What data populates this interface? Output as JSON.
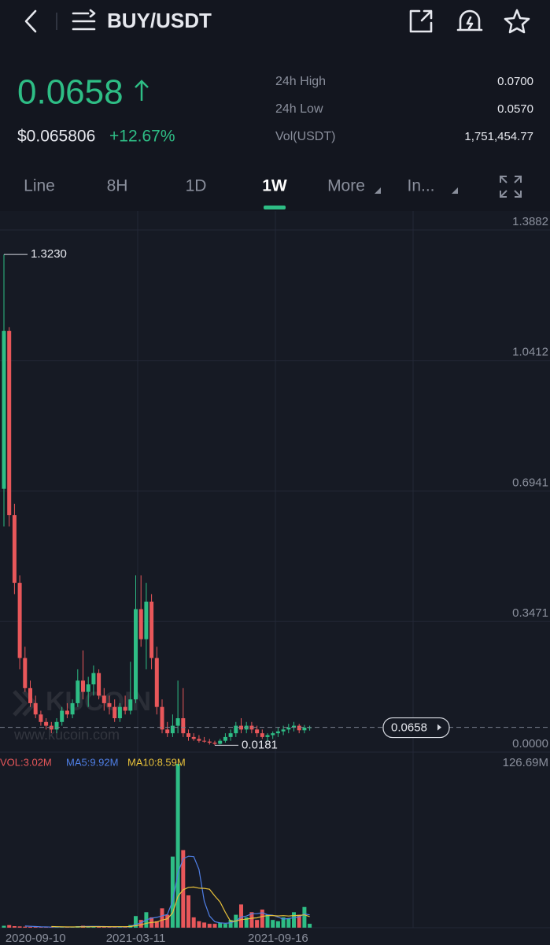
{
  "header": {
    "title": "BUY/USDT"
  },
  "ticker": {
    "price": "0.0658",
    "usd_price": "$0.065806",
    "change": "+12.67%",
    "stats": [
      {
        "label": "24h High",
        "value": "0.0700"
      },
      {
        "label": "24h Low",
        "value": "0.0570"
      },
      {
        "label": "Vol(USDT)",
        "value": "1,751,454.77"
      }
    ]
  },
  "tabs": [
    "Line",
    "8H",
    "1D",
    "1W",
    "More",
    "In..."
  ],
  "watermark": {
    "logo": "KUCOIN",
    "url": "www.kucoin.com"
  },
  "chart_data": [
    {
      "type": "candlestick",
      "up_color": "#2ebd85",
      "down_color": "#e8575a",
      "grid": true,
      "ylim": [
        0,
        1.3882
      ],
      "yticks": [
        1.3882,
        1.0412,
        0.6941,
        0.3471,
        {
          "value": 0,
          "label": "0.0000"
        }
      ],
      "annotations": [
        {
          "value": 1.323,
          "label": "1.3230"
        },
        {
          "value": 0.0181,
          "label": "0.0181"
        }
      ],
      "last_price": {
        "value": 0.0658,
        "label": "0.0658"
      },
      "ohlc": [
        [
          0.7,
          1.323,
          0.6,
          1.12
        ],
        [
          1.12,
          1.13,
          0.6,
          0.63
        ],
        [
          0.63,
          0.66,
          0.42,
          0.45
        ],
        [
          0.45,
          0.47,
          0.22,
          0.25
        ],
        [
          0.25,
          0.28,
          0.16,
          0.17
        ],
        [
          0.17,
          0.19,
          0.12,
          0.13
        ],
        [
          0.13,
          0.15,
          0.09,
          0.1
        ],
        [
          0.1,
          0.11,
          0.07,
          0.08
        ],
        [
          0.08,
          0.09,
          0.06,
          0.07
        ],
        [
          0.07,
          0.08,
          0.05,
          0.06
        ],
        [
          0.06,
          0.09,
          0.05,
          0.08
        ],
        [
          0.08,
          0.12,
          0.07,
          0.11
        ],
        [
          0.11,
          0.13,
          0.09,
          0.1
        ],
        [
          0.1,
          0.14,
          0.09,
          0.13
        ],
        [
          0.13,
          0.22,
          0.12,
          0.19
        ],
        [
          0.19,
          0.27,
          0.14,
          0.16
        ],
        [
          0.16,
          0.2,
          0.12,
          0.18
        ],
        [
          0.18,
          0.23,
          0.15,
          0.21
        ],
        [
          0.21,
          0.22,
          0.14,
          0.15
        ],
        [
          0.15,
          0.17,
          0.11,
          0.13
        ],
        [
          0.13,
          0.15,
          0.1,
          0.12
        ],
        [
          0.12,
          0.14,
          0.08,
          0.09
        ],
        [
          0.09,
          0.13,
          0.08,
          0.12
        ],
        [
          0.12,
          0.15,
          0.1,
          0.11
        ],
        [
          0.11,
          0.24,
          0.1,
          0.14
        ],
        [
          0.14,
          0.47,
          0.13,
          0.38
        ],
        [
          0.38,
          0.47,
          0.28,
          0.3
        ],
        [
          0.3,
          0.45,
          0.22,
          0.4
        ],
        [
          0.4,
          0.42,
          0.22,
          0.25
        ],
        [
          0.25,
          0.28,
          0.1,
          0.12
        ],
        [
          0.12,
          0.14,
          0.05,
          0.06
        ],
        [
          0.06,
          0.08,
          0.04,
          0.05
        ],
        [
          0.05,
          0.1,
          0.04,
          0.07
        ],
        [
          0.07,
          0.19,
          0.05,
          0.09
        ],
        [
          0.09,
          0.17,
          0.04,
          0.05
        ],
        [
          0.05,
          0.06,
          0.03,
          0.04
        ],
        [
          0.04,
          0.05,
          0.03,
          0.035
        ],
        [
          0.035,
          0.045,
          0.025,
          0.03
        ],
        [
          0.03,
          0.04,
          0.025,
          0.028
        ],
        [
          0.028,
          0.035,
          0.02,
          0.025
        ],
        [
          0.025,
          0.03,
          0.0181,
          0.022
        ],
        [
          0.022,
          0.035,
          0.02,
          0.03
        ],
        [
          0.03,
          0.05,
          0.025,
          0.04
        ],
        [
          0.04,
          0.06,
          0.03,
          0.05
        ],
        [
          0.05,
          0.08,
          0.04,
          0.07
        ],
        [
          0.07,
          0.09,
          0.05,
          0.06
        ],
        [
          0.06,
          0.08,
          0.05,
          0.07
        ],
        [
          0.07,
          0.08,
          0.05,
          0.06
        ],
        [
          0.06,
          0.07,
          0.04,
          0.05
        ],
        [
          0.05,
          0.06,
          0.035,
          0.04
        ],
        [
          0.04,
          0.05,
          0.03,
          0.045
        ],
        [
          0.045,
          0.055,
          0.035,
          0.05
        ],
        [
          0.05,
          0.065,
          0.04,
          0.055
        ],
        [
          0.055,
          0.07,
          0.045,
          0.06
        ],
        [
          0.06,
          0.075,
          0.05,
          0.065
        ],
        [
          0.065,
          0.08,
          0.055,
          0.07
        ],
        [
          0.07,
          0.075,
          0.05,
          0.058
        ],
        [
          0.058,
          0.072,
          0.05,
          0.065
        ],
        [
          0.065,
          0.07,
          0.057,
          0.0658
        ]
      ]
    },
    {
      "type": "bar",
      "categories": [
        null,
        null,
        null,
        null,
        null,
        null,
        "2020-09-10",
        null,
        null,
        null,
        null,
        null,
        null,
        null,
        null,
        null,
        null,
        null,
        null,
        null,
        null,
        null,
        null,
        null,
        null,
        "2021-03-11",
        null,
        null,
        null,
        null,
        null,
        null,
        null,
        null,
        null,
        null,
        null,
        null,
        null,
        null,
        null,
        null,
        null,
        null,
        null,
        null,
        null,
        null,
        null,
        null,
        null,
        null,
        "2021-09-16",
        null,
        null,
        null,
        null,
        null,
        null
      ],
      "ylim": [
        0,
        126.69
      ],
      "yticks": [
        {
          "value": 126.69,
          "label": "126.69M"
        }
      ],
      "series": [
        {
          "name": "VOL:3.02M",
          "color": "#e8575a",
          "values": [
            1.5,
            2,
            1.2,
            1,
            0.8,
            0.7,
            0.6,
            0.5,
            0.5,
            0.4,
            0.5,
            0.6,
            0.5,
            0.6,
            1.2,
            1.5,
            1,
            0.8,
            0.7,
            0.6,
            0.5,
            0.5,
            0.6,
            0.8,
            2,
            9,
            6,
            12,
            8,
            5,
            15,
            10,
            55,
            126.69,
            60,
            25,
            8,
            5,
            4,
            3,
            3,
            4,
            3,
            6,
            10,
            18,
            8,
            12,
            6,
            14,
            10,
            6,
            5,
            8,
            7,
            12,
            10,
            16,
            3.02
          ]
        },
        {
          "name": "MA5:9.92M",
          "color": "#4f7fe6",
          "values": [
            null,
            null,
            null,
            null,
            1.3,
            1.1,
            0.9,
            0.7,
            0.6,
            0.5,
            0.5,
            0.5,
            0.5,
            0.5,
            0.7,
            0.9,
            1.0,
            1.0,
            1.0,
            0.9,
            0.7,
            0.6,
            0.6,
            0.6,
            0.9,
            2.6,
            3.7,
            6.0,
            7.4,
            8,
            9.2,
            10.2,
            20.6,
            42.3,
            53.3,
            55.3,
            55,
            45,
            20.4,
            9,
            4.6,
            3.8,
            3.4,
            3.8,
            5.2,
            8.2,
            9,
            10.8,
            10.8,
            11.6,
            10,
            9.6,
            8.2,
            6.6,
            7.2,
            7.6,
            8.4,
            10.6,
            9.92
          ]
        },
        {
          "name": "MA10:8.59M",
          "color": "#e8c13a",
          "values": [
            null,
            null,
            null,
            null,
            null,
            null,
            null,
            null,
            null,
            0.9,
            0.8,
            0.7,
            0.6,
            0.6,
            0.6,
            0.7,
            0.7,
            0.8,
            0.8,
            0.8,
            0.8,
            0.8,
            0.8,
            0.8,
            0.9,
            1.6,
            2.2,
            3.4,
            4.1,
            4.4,
            5.9,
            6.9,
            11.4,
            24.1,
            29.3,
            31.2,
            31.4,
            30.6,
            30.4,
            29.7,
            24.5,
            19.9,
            11.9,
            4.8,
            5.1,
            6.3,
            6.6,
            7.3,
            7.6,
            8.7,
            9.4,
            9.4,
            9.1,
            9.3,
            9,
            9.4,
            9.5,
            9.9,
            8.59
          ]
        }
      ]
    }
  ]
}
